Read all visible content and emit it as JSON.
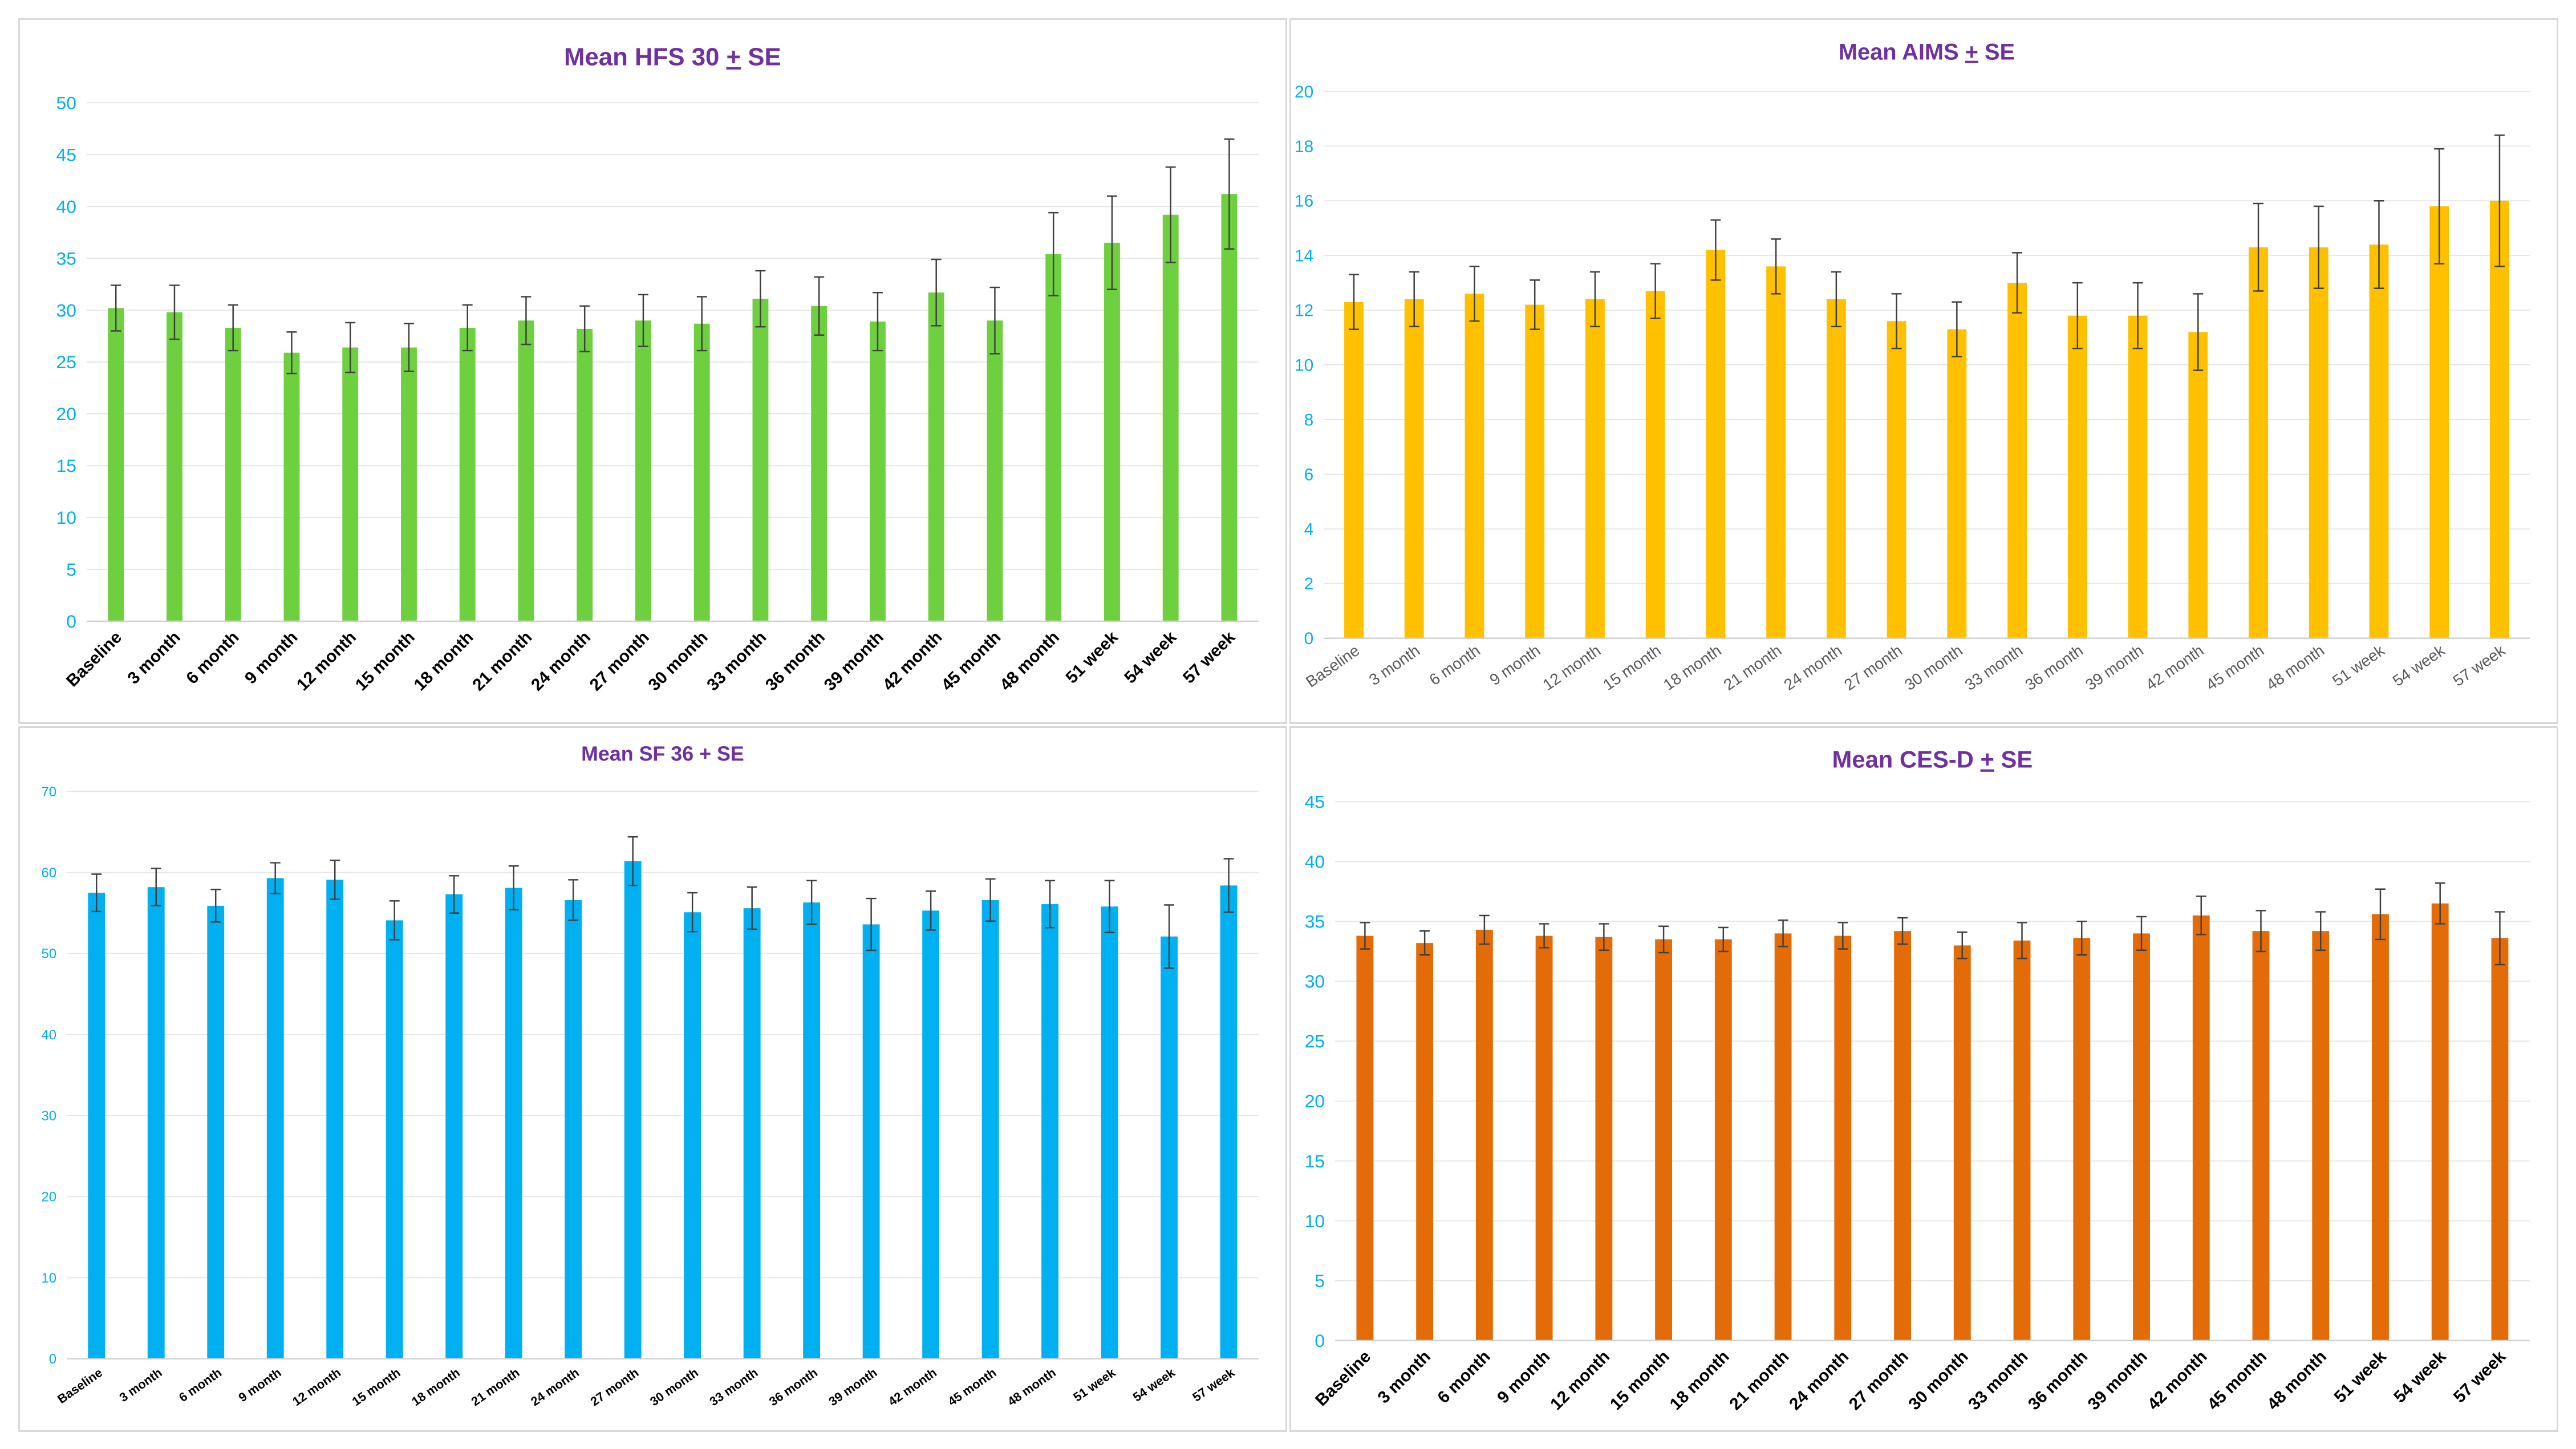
{
  "chart_data": [
    {
      "type": "bar",
      "title": "Mean HFS 30 + SE",
      "title_parts": [
        "Mean HFS 30 ",
        "+",
        " SE"
      ],
      "ylim": [
        0,
        50
      ],
      "yticks": [
        0,
        5,
        10,
        15,
        20,
        25,
        30,
        35,
        40,
        45,
        50
      ],
      "categories": [
        "Baseline",
        "3 month",
        "6 month",
        "9 month",
        "12 month",
        "15 month",
        "18 month",
        "21 month",
        "24 month",
        "27 month",
        "30 month",
        "33 month",
        "36 month",
        "39 month",
        "42 month",
        "45 month",
        "48 month",
        "51 week",
        "54 week",
        "57 week"
      ],
      "values": [
        30.2,
        29.8,
        28.3,
        25.9,
        26.4,
        26.4,
        28.3,
        29.0,
        28.2,
        29.0,
        28.7,
        31.1,
        30.4,
        28.9,
        31.7,
        29.0,
        35.4,
        36.5,
        39.2,
        41.2
      ],
      "errors": [
        2.2,
        2.6,
        2.2,
        2.0,
        2.4,
        2.3,
        2.2,
        2.3,
        2.2,
        2.5,
        2.6,
        2.7,
        2.8,
        2.8,
        3.2,
        3.2,
        4.0,
        4.5,
        4.6,
        5.3
      ],
      "colors": {
        "bar": "#6ecf3f",
        "tick": "#00b0f0",
        "title": "#7030a0"
      }
    },
    {
      "type": "bar",
      "title": "Mean AIMS + SE",
      "title_parts": [
        "Mean AIMS ",
        "+",
        " SE"
      ],
      "ylim": [
        0,
        20
      ],
      "yticks": [
        0,
        2,
        4,
        6,
        8,
        10,
        12,
        14,
        16,
        18,
        20
      ],
      "categories": [
        "Baseline",
        "3 month",
        "6 month",
        "9 month",
        "12 month",
        "15 month",
        "18 month",
        "21 month",
        "24 month",
        "27 month",
        "30 month",
        "33 month",
        "36 month",
        "39 month",
        "42 month",
        "45 month",
        "48 month",
        "51 week",
        "54 week",
        "57 week"
      ],
      "values": [
        12.3,
        12.4,
        12.6,
        12.2,
        12.4,
        12.7,
        14.2,
        13.6,
        12.4,
        11.6,
        11.3,
        13.0,
        11.8,
        11.8,
        11.2,
        14.3,
        14.3,
        14.4,
        15.8,
        16.0
      ],
      "errors": [
        1.0,
        1.0,
        1.0,
        0.9,
        1.0,
        1.0,
        1.1,
        1.0,
        1.0,
        1.0,
        1.0,
        1.1,
        1.2,
        1.2,
        1.4,
        1.6,
        1.5,
        1.6,
        2.1,
        2.4
      ],
      "colors": {
        "bar": "#ffc000",
        "tick": "#00b0f0",
        "title": "#7030a0"
      }
    },
    {
      "type": "bar",
      "title": "Mean SF 36 + SE",
      "title_parts": [
        "Mean SF 36 + SE"
      ],
      "ylim": [
        0,
        70
      ],
      "yticks": [
        0,
        10,
        20,
        30,
        40,
        50,
        60,
        70
      ],
      "categories": [
        "Baseline",
        "3 month",
        "6 month",
        "9 month",
        "12 month",
        "15 month",
        "18 month",
        "21 month",
        "24 month",
        "27 month",
        "30 month",
        "33 month",
        "36 month",
        "39 month",
        "42 month",
        "45 month",
        "48 month",
        "51 week",
        "54 week",
        "57 week"
      ],
      "values": [
        57.5,
        58.2,
        55.9,
        59.3,
        59.1,
        54.1,
        57.3,
        58.1,
        56.6,
        61.4,
        55.1,
        55.6,
        56.3,
        53.6,
        55.3,
        56.6,
        56.1,
        55.8,
        52.1,
        58.4
      ],
      "errors": [
        2.3,
        2.3,
        2.0,
        1.9,
        2.4,
        2.4,
        2.3,
        2.7,
        2.5,
        3.0,
        2.4,
        2.6,
        2.7,
        3.2,
        2.4,
        2.6,
        2.9,
        3.2,
        3.9,
        3.3
      ],
      "colors": {
        "bar": "#00b0f0",
        "tick": "#00b0f0",
        "title": "#7030a0"
      }
    },
    {
      "type": "bar",
      "title": "Mean CES-D + SE",
      "title_parts": [
        "Mean CES-D ",
        "+",
        " SE"
      ],
      "ylim": [
        0,
        45
      ],
      "yticks": [
        0,
        5,
        10,
        15,
        20,
        25,
        30,
        35,
        40,
        45
      ],
      "categories": [
        "Baseline",
        "3 month",
        "6 month",
        "9 month",
        "12 month",
        "15 month",
        "18 month",
        "21 month",
        "24 month",
        "27 month",
        "30 month",
        "33 month",
        "36 month",
        "39 month",
        "42 month",
        "45 month",
        "48 month",
        "51 week",
        "54 week",
        "57 week"
      ],
      "values": [
        33.8,
        33.2,
        34.3,
        33.8,
        33.7,
        33.5,
        33.5,
        34.0,
        33.8,
        34.2,
        33.0,
        33.4,
        33.6,
        34.0,
        35.5,
        34.2,
        34.2,
        35.6,
        36.5,
        33.6
      ],
      "errors": [
        1.1,
        1.0,
        1.2,
        1.0,
        1.1,
        1.1,
        1.0,
        1.1,
        1.1,
        1.1,
        1.1,
        1.5,
        1.4,
        1.4,
        1.6,
        1.7,
        1.6,
        2.1,
        1.7,
        2.2
      ],
      "colors": {
        "bar": "#e36c09",
        "tick": "#00b0f0",
        "title": "#7030a0"
      }
    }
  ]
}
